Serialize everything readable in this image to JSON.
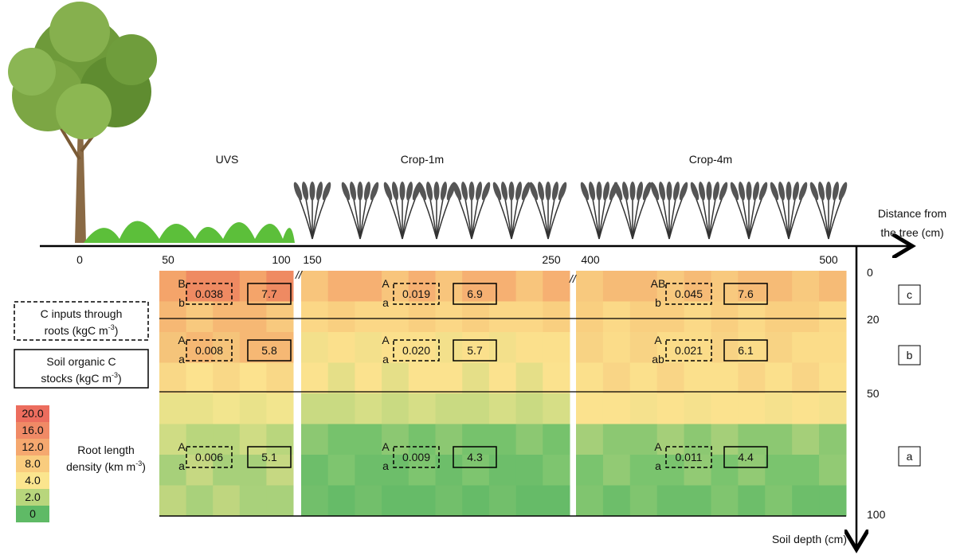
{
  "zones": [
    {
      "label": "UVS",
      "cells": [
        {
          "upper": "B",
          "lower": "b",
          "c_input": "0.038",
          "soc": "7.7"
        },
        {
          "upper": "A",
          "lower": "a",
          "c_input": "0.008",
          "soc": "5.8"
        },
        {
          "upper": "A",
          "lower": "a",
          "c_input": "0.006",
          "soc": "5.1"
        }
      ]
    },
    {
      "label": "Crop-1m",
      "cells": [
        {
          "upper": "A",
          "lower": "a",
          "c_input": "0.019",
          "soc": "6.9"
        },
        {
          "upper": "A",
          "lower": "a",
          "c_input": "0.020",
          "soc": "5.7"
        },
        {
          "upper": "A",
          "lower": "a",
          "c_input": "0.009",
          "soc": "4.3"
        }
      ]
    },
    {
      "label": "Crop-4m",
      "cells": [
        {
          "upper": "AB",
          "lower": "b",
          "c_input": "0.045",
          "soc": "7.6"
        },
        {
          "upper": "A",
          "lower": "ab",
          "c_input": "0.021",
          "soc": "6.1"
        },
        {
          "upper": "A",
          "lower": "a",
          "c_input": "0.011",
          "soc": "4.4"
        }
      ]
    }
  ],
  "x_axis": {
    "label": [
      "Distance from",
      "the tree (cm)"
    ],
    "ticks": [
      "0",
      "50",
      "100",
      "150",
      "250",
      "400",
      "500"
    ]
  },
  "y_axis": {
    "label": "Soil depth (cm)",
    "ticks": [
      "0",
      "20",
      "50",
      "100"
    ]
  },
  "layer_letters": [
    "c",
    "b",
    "a"
  ],
  "legend": {
    "c_inputs": {
      "lines": [
        "C inputs through",
        "roots (kgC m"
      ],
      "sup": "-3",
      "close": ")"
    },
    "soc": {
      "lines": [
        "Soil organic C",
        "stocks (kgC m"
      ],
      "sup": "-3",
      "close": ")"
    },
    "root_density": {
      "lines": [
        "Root length",
        "density (km m"
      ],
      "sup": "-3",
      "close": ")"
    },
    "scale": [
      "20.0",
      "16.0",
      "12.0",
      "8.0",
      "4.0",
      "2.0",
      "0"
    ]
  }
}
